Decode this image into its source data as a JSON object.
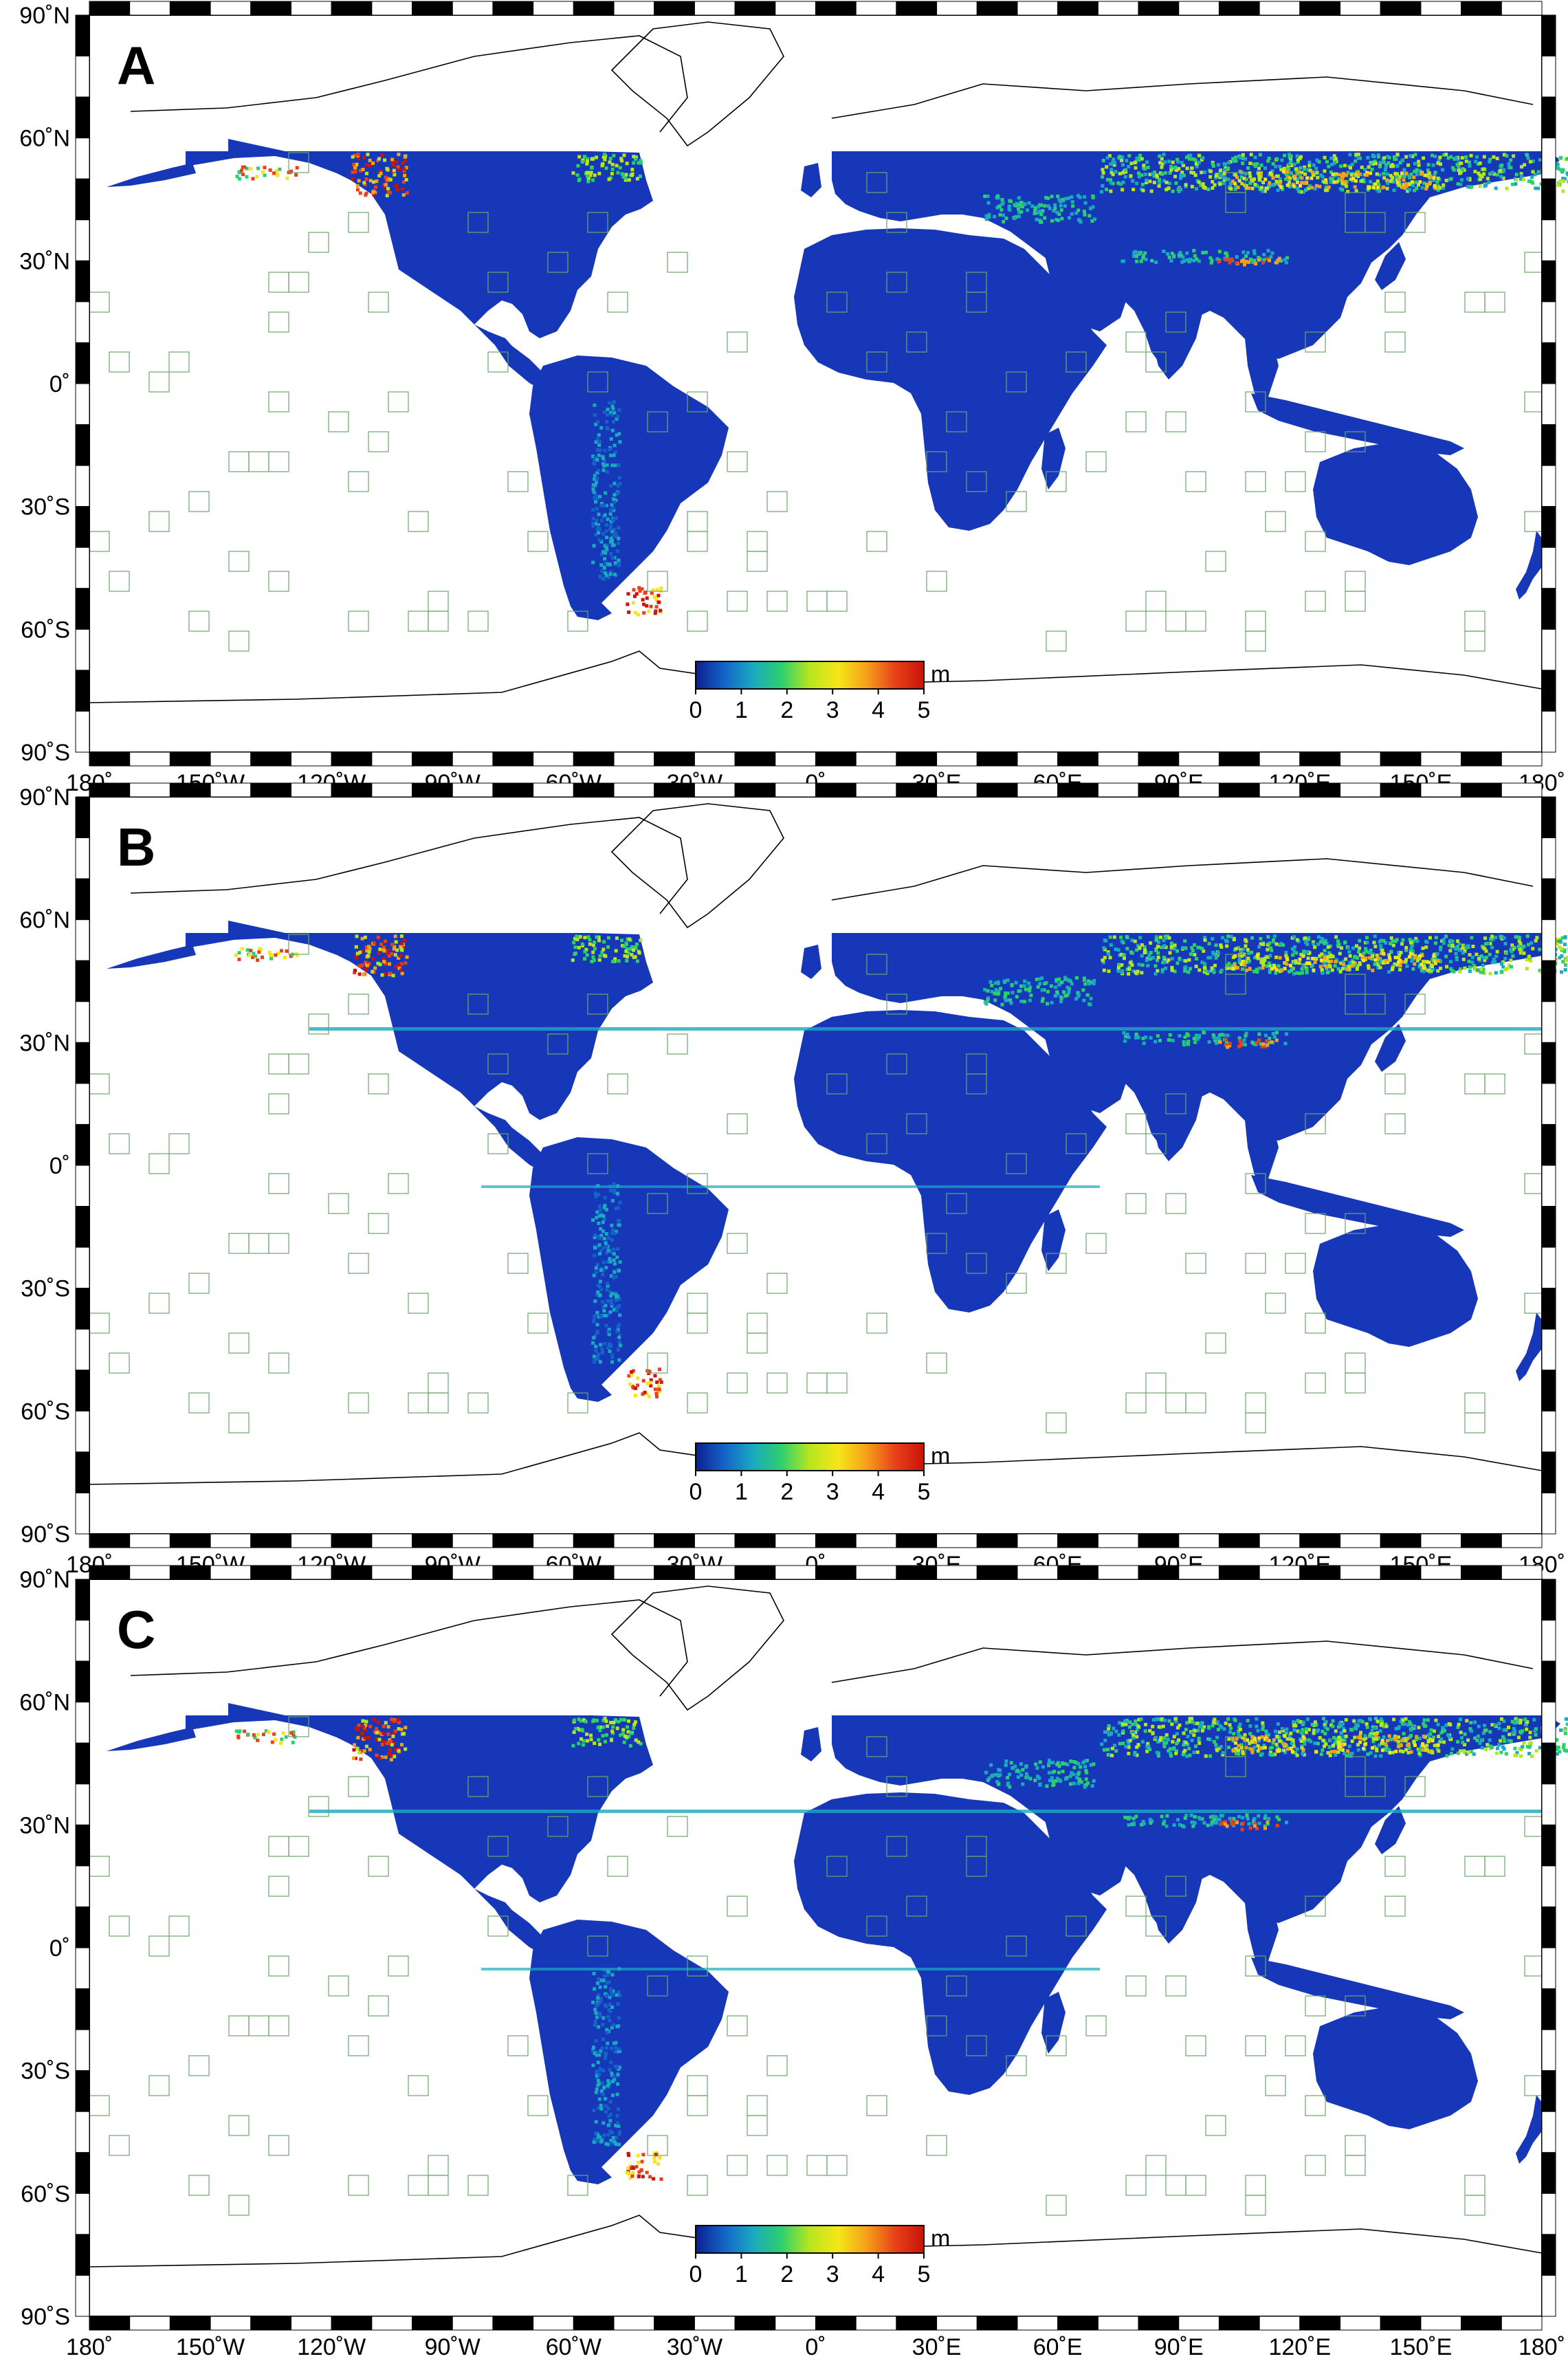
{
  "panels": [
    {
      "label": "A",
      "variant": 0
    },
    {
      "label": "B",
      "variant": 1
    },
    {
      "label": "C",
      "variant": 2
    }
  ],
  "lat_labels": [
    "90˚N",
    "60˚N",
    "30˚N",
    "0˚",
    "30˚S",
    "60˚S",
    "90˚S"
  ],
  "lon_labels": [
    "180˚",
    "150˚W",
    "120˚W",
    "90˚W",
    "60˚W",
    "30˚W",
    "0˚",
    "30˚E",
    "60˚E",
    "90˚E",
    "120˚E",
    "150˚E",
    "180˚"
  ],
  "colorbar": {
    "unit": "m",
    "ticks": [
      "0",
      "1",
      "2",
      "3",
      "4",
      "5"
    ],
    "range": [
      0,
      5
    ],
    "colors": [
      "#0a1f8f",
      "#1463c8",
      "#1aa9c0",
      "#2ccf6e",
      "#b8e61e",
      "#f5e61a",
      "#f5a01a",
      "#e8401a",
      "#c8140a"
    ]
  },
  "colors": {
    "land_base": "#1537b8",
    "grid_line": "#6aa66a",
    "coast": "#000000",
    "frame": "#000000"
  }
}
